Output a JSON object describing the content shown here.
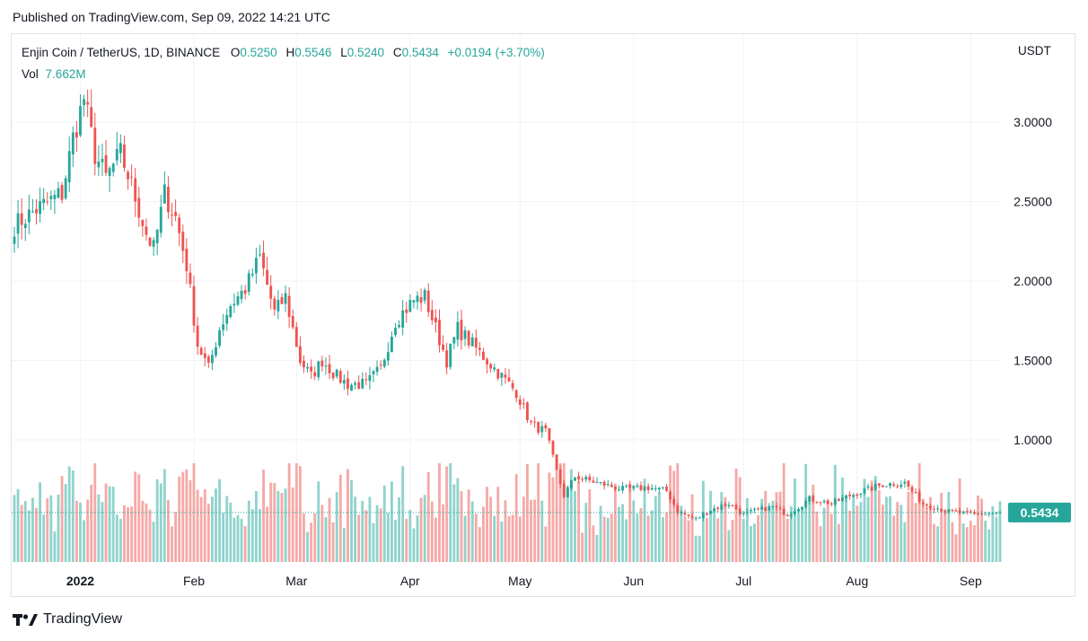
{
  "published": "Published on TradingView.com, Sep 09, 2022 14:21 UTC",
  "legend": {
    "symbol": "Enjin Coin / TetherUS, 1D, BINANCE",
    "o_label": "O",
    "o": "0.5250",
    "h_label": "H",
    "h": "0.5546",
    "l_label": "L",
    "l": "0.5240",
    "c_label": "C",
    "c": "0.5434",
    "change": "+0.0194 (+3.70%)",
    "vol_label": "Vol",
    "vol": "7.662M"
  },
  "price_axis": {
    "unit": "USDT",
    "last_price": "0.5434"
  },
  "footer": {
    "brand": "TradingView",
    "logo_icon": "tradingview-logo-icon"
  },
  "colors": {
    "up": "#26a69a",
    "down": "#ef5350",
    "vol_up": "#8fd3cc",
    "vol_down": "#f5a9a7",
    "text": "#131722"
  },
  "chart_data": {
    "type": "candlestick",
    "title": "Enjin Coin / TetherUS, 1D, BINANCE",
    "ylabel": "USDT",
    "ylim": [
      0.43,
      3.33
    ],
    "yticks": [
      "1.0000",
      "1.5000",
      "2.0000",
      "2.5000",
      "3.0000"
    ],
    "x_tick_labels": [
      "2022",
      "Feb",
      "Mar",
      "Apr",
      "May",
      "Jun",
      "Jul",
      "Aug",
      "Sep"
    ],
    "grid": true,
    "start_date": "2021-12-14",
    "end_date": "2022-09-09",
    "close_keyframes": [
      [
        "2021-12-14",
        2.35
      ],
      [
        "2021-12-20",
        2.45
      ],
      [
        "2021-12-27",
        2.55
      ],
      [
        "2021-12-30",
        2.9
      ],
      [
        "2022-01-02",
        3.15
      ],
      [
        "2022-01-05",
        2.8
      ],
      [
        "2022-01-08",
        2.65
      ],
      [
        "2022-01-12",
        2.8
      ],
      [
        "2022-01-15",
        2.6
      ],
      [
        "2022-01-19",
        2.3
      ],
      [
        "2022-01-21",
        2.2
      ],
      [
        "2022-01-24",
        2.55
      ],
      [
        "2022-01-27",
        2.4
      ],
      [
        "2022-01-30",
        2.1
      ],
      [
        "2022-02-02",
        1.6
      ],
      [
        "2022-02-05",
        1.45
      ],
      [
        "2022-02-08",
        1.7
      ],
      [
        "2022-02-11",
        1.85
      ],
      [
        "2022-02-15",
        1.95
      ],
      [
        "2022-02-19",
        2.15
      ],
      [
        "2022-02-23",
        1.8
      ],
      [
        "2022-02-26",
        1.9
      ],
      [
        "2022-03-02",
        1.5
      ],
      [
        "2022-03-05",
        1.4
      ],
      [
        "2022-03-08",
        1.5
      ],
      [
        "2022-03-12",
        1.4
      ],
      [
        "2022-03-15",
        1.35
      ],
      [
        "2022-03-20",
        1.35
      ],
      [
        "2022-03-24",
        1.45
      ],
      [
        "2022-03-28",
        1.75
      ],
      [
        "2022-04-02",
        1.88
      ],
      [
        "2022-04-05",
        1.9
      ],
      [
        "2022-04-08",
        1.7
      ],
      [
        "2022-04-11",
        1.5
      ],
      [
        "2022-04-14",
        1.7
      ],
      [
        "2022-04-18",
        1.6
      ],
      [
        "2022-04-22",
        1.5
      ],
      [
        "2022-04-26",
        1.4
      ],
      [
        "2022-04-30",
        1.3
      ],
      [
        "2022-05-04",
        1.1
      ],
      [
        "2022-05-08",
        1.05
      ],
      [
        "2022-05-11",
        0.8
      ],
      [
        "2022-05-13",
        0.65
      ],
      [
        "2022-05-16",
        0.77
      ],
      [
        "2022-05-22",
        0.73
      ],
      [
        "2022-05-29",
        0.69
      ],
      [
        "2022-06-05",
        0.7
      ],
      [
        "2022-06-10",
        0.68
      ],
      [
        "2022-06-13",
        0.55
      ],
      [
        "2022-06-18",
        0.5
      ],
      [
        "2022-06-22",
        0.56
      ],
      [
        "2022-06-27",
        0.6
      ],
      [
        "2022-07-01",
        0.53
      ],
      [
        "2022-07-05",
        0.56
      ],
      [
        "2022-07-09",
        0.58
      ],
      [
        "2022-07-13",
        0.53
      ],
      [
        "2022-07-19",
        0.63
      ],
      [
        "2022-07-25",
        0.6
      ],
      [
        "2022-07-30",
        0.65
      ],
      [
        "2022-08-08",
        0.72
      ],
      [
        "2022-08-14",
        0.73
      ],
      [
        "2022-08-19",
        0.6
      ],
      [
        "2022-08-26",
        0.55
      ],
      [
        "2022-09-02",
        0.53
      ],
      [
        "2022-09-09",
        0.5434
      ]
    ],
    "volume_unit": "M",
    "volume_ylim": [
      0,
      45
    ]
  }
}
